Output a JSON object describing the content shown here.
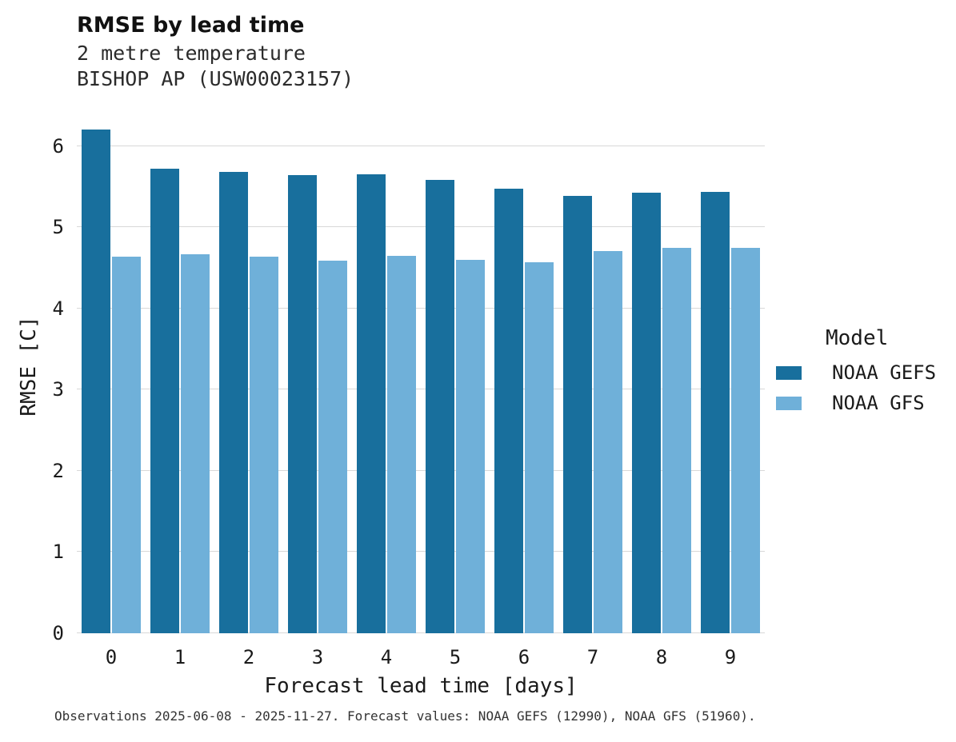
{
  "chart_data": {
    "type": "bar",
    "title": "RMSE by lead time",
    "subtitle1": "2 metre temperature",
    "subtitle2": "BISHOP AP (USW00023157)",
    "xlabel": "Forecast lead time [days]",
    "ylabel": "RMSE [C]",
    "caption": "Observations 2025-06-08 - 2025-11-27. Forecast values: NOAA GEFS (12990), NOAA GFS (51960).",
    "legend_title": "Model",
    "legend_position": "right",
    "grid": "horizontal",
    "categories": [
      "0",
      "1",
      "2",
      "3",
      "4",
      "5",
      "6",
      "7",
      "8",
      "9"
    ],
    "yticks": [
      0,
      1,
      2,
      3,
      4,
      5,
      6
    ],
    "ylim": [
      0,
      6.57
    ],
    "series": [
      {
        "name": "NOAA GEFS",
        "color": "#186f9d",
        "values": [
          6.21,
          5.72,
          5.68,
          5.64,
          5.65,
          5.59,
          5.48,
          5.39,
          5.43,
          5.44
        ]
      },
      {
        "name": "NOAA GFS",
        "color": "#6fb0d9",
        "values": [
          4.64,
          4.67,
          4.64,
          4.59,
          4.65,
          4.6,
          4.57,
          4.71,
          4.75,
          4.75
        ]
      }
    ]
  }
}
